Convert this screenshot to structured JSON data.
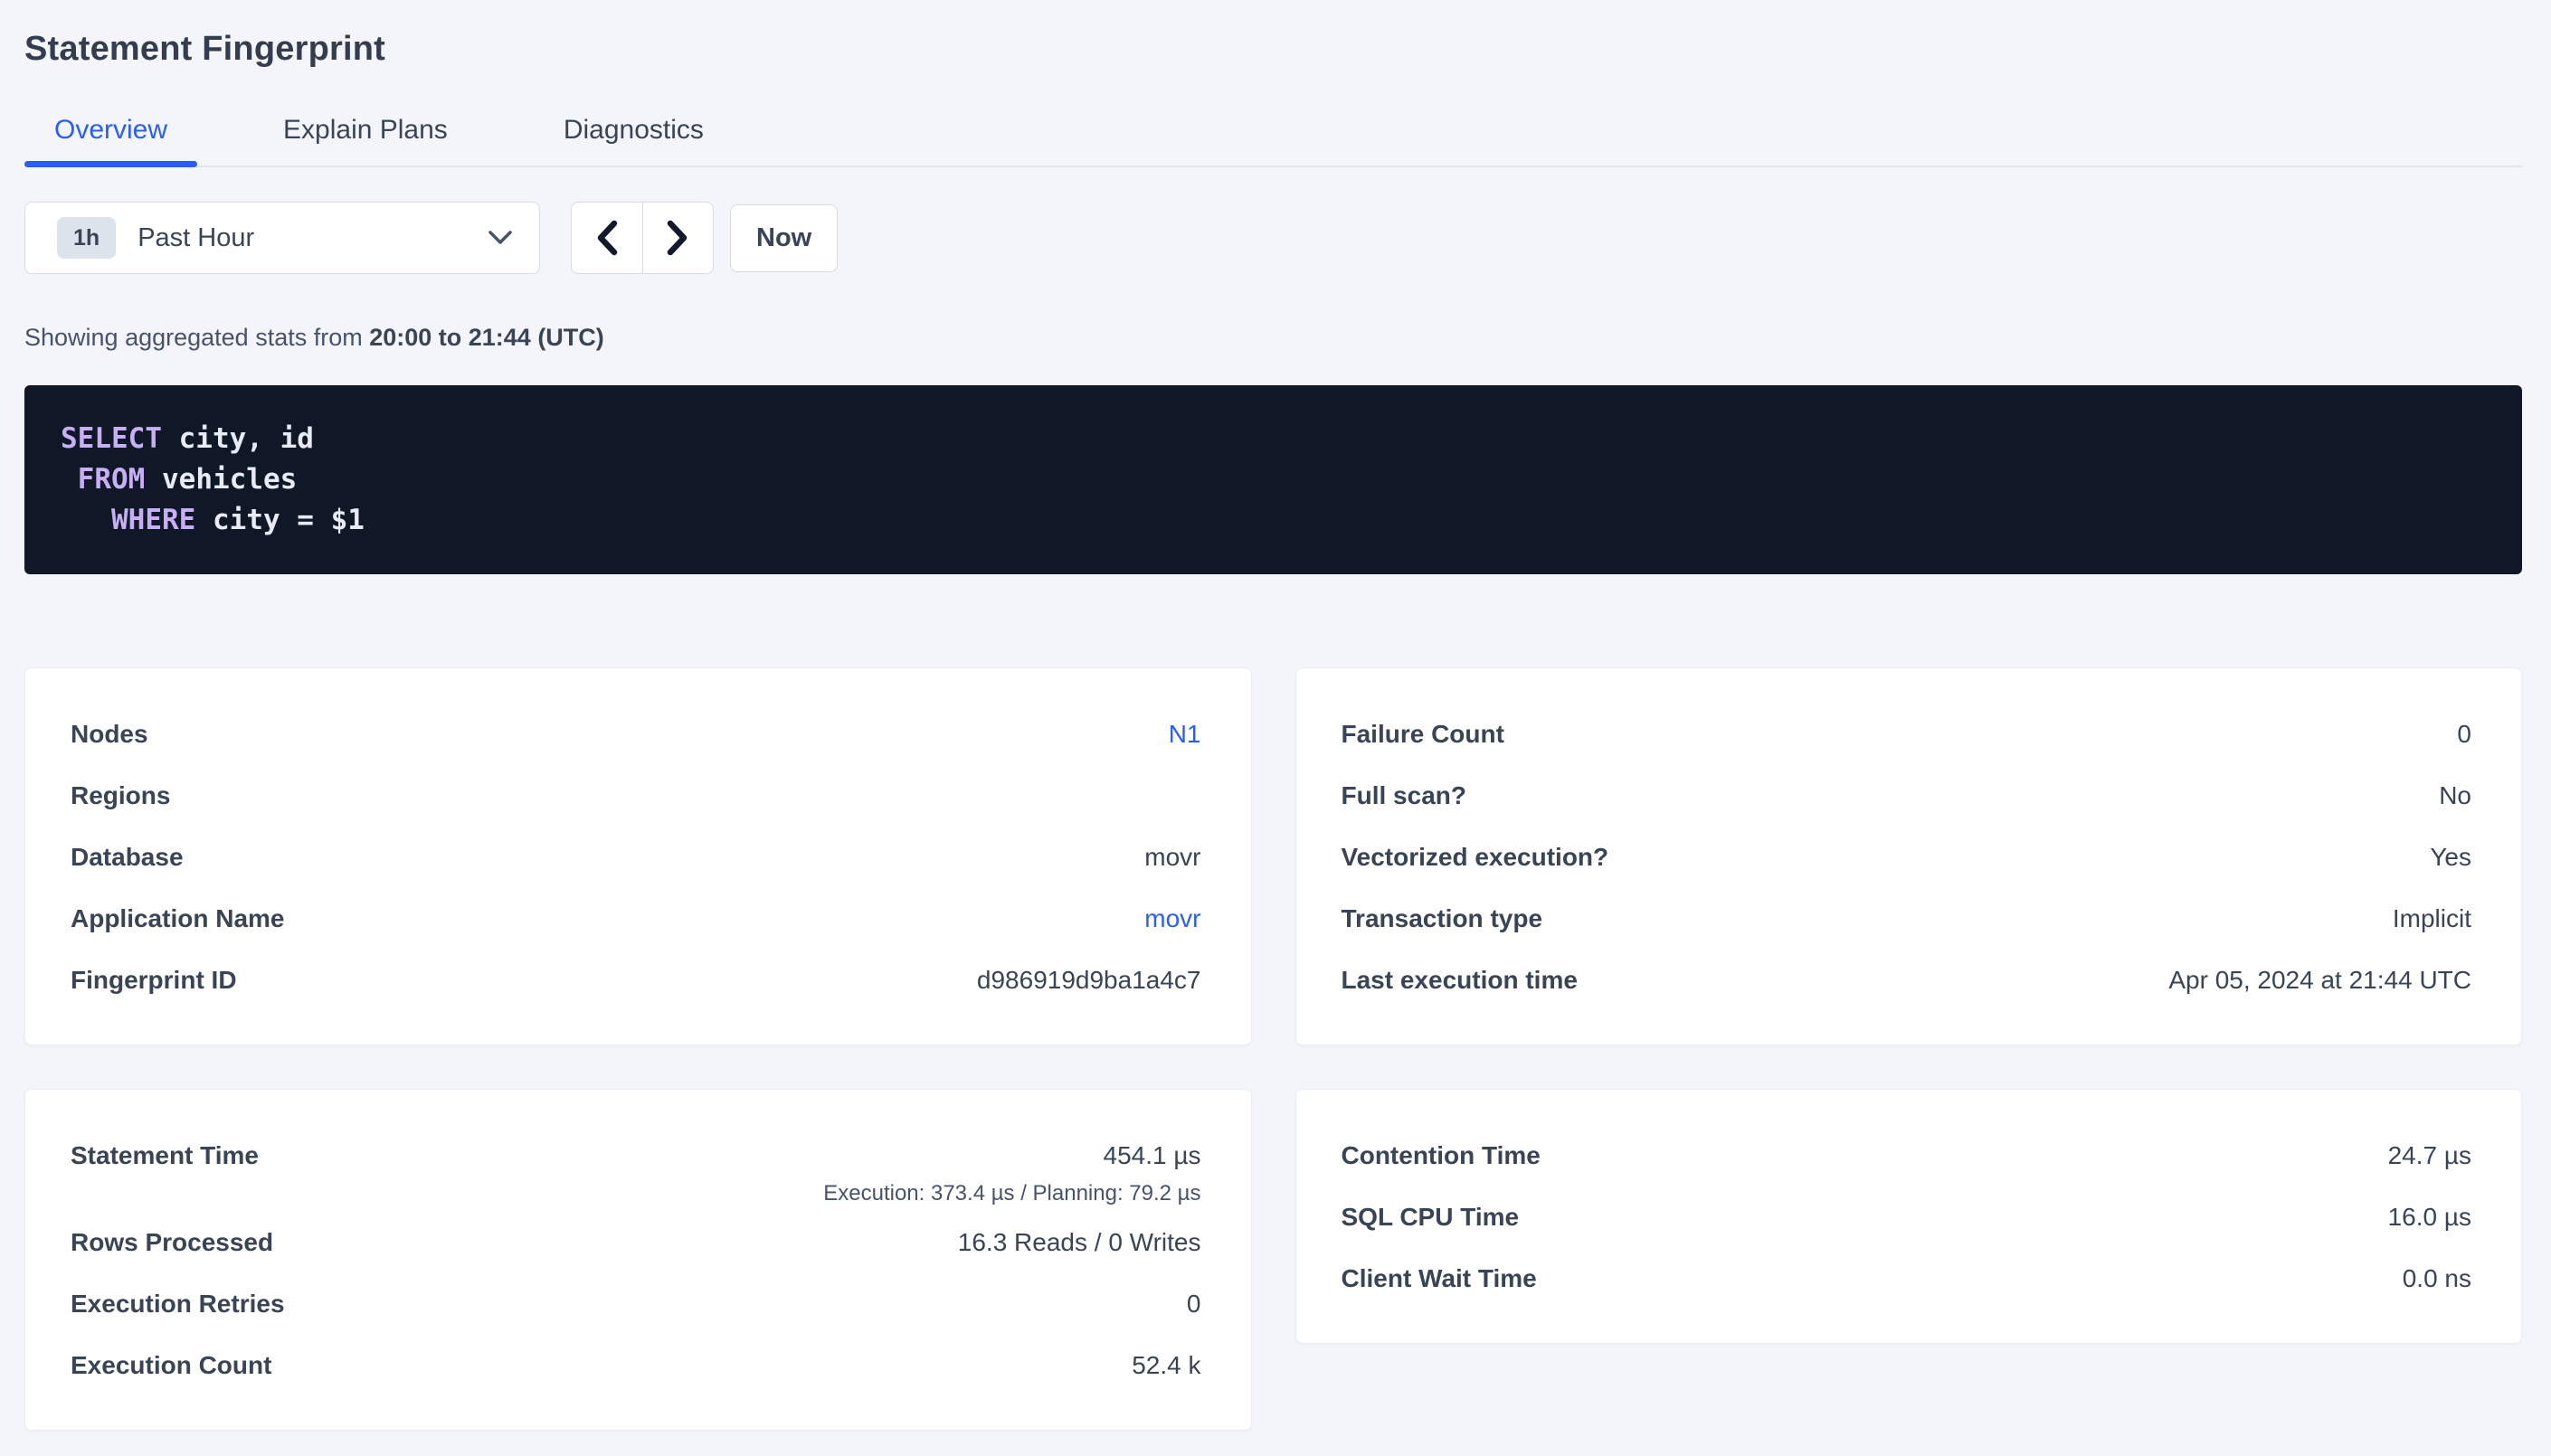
{
  "page": {
    "title": "Statement Fingerprint"
  },
  "tabs": [
    {
      "label": "Overview",
      "active": true
    },
    {
      "label": "Explain Plans",
      "active": false
    },
    {
      "label": "Diagnostics",
      "active": false
    }
  ],
  "time_picker": {
    "badge": "1h",
    "selected_range": "Past Hour",
    "prev_icon": "chevron-left-icon",
    "next_icon": "chevron-right-icon",
    "now_label": "Now"
  },
  "stats_line": {
    "prefix": "Showing aggregated stats from ",
    "range": "20:00 to 21:44 (UTC)"
  },
  "sql": {
    "lines": [
      [
        {
          "text": "SELECT",
          "kw": true
        },
        {
          "text": " city, id"
        }
      ],
      [
        {
          "text": " "
        },
        {
          "text": "FROM",
          "kw": true
        },
        {
          "text": " vehicles"
        }
      ],
      [
        {
          "text": "   "
        },
        {
          "text": "WHERE",
          "kw": true
        },
        {
          "text": " city = $1"
        }
      ]
    ]
  },
  "cards": {
    "details_left": {
      "rows": [
        {
          "label": "Nodes",
          "value": "N1",
          "link": true
        },
        {
          "label": "Regions",
          "value": ""
        },
        {
          "label": "Database",
          "value": "movr"
        },
        {
          "label": "Application Name",
          "value": "movr",
          "link": true
        },
        {
          "label": "Fingerprint ID",
          "value": "d986919d9ba1a4c7"
        }
      ]
    },
    "details_right": {
      "rows": [
        {
          "label": "Failure Count",
          "value": "0"
        },
        {
          "label": "Full scan?",
          "value": "No"
        },
        {
          "label": "Vectorized execution?",
          "value": "Yes"
        },
        {
          "label": "Transaction type",
          "value": "Implicit"
        },
        {
          "label": "Last execution time",
          "value": "Apr 05, 2024 at 21:44 UTC"
        }
      ]
    },
    "perf_left": {
      "rows": [
        {
          "label": "Statement Time",
          "value": "454.1 µs",
          "sub": "Execution: 373.4 µs / Planning: 79.2 µs"
        },
        {
          "label": "Rows Processed",
          "value": "16.3 Reads / 0 Writes"
        },
        {
          "label": "Execution Retries",
          "value": "0"
        },
        {
          "label": "Execution Count",
          "value": "52.4 k"
        }
      ]
    },
    "perf_right": {
      "rows": [
        {
          "label": "Contention Time",
          "value": "24.7 µs"
        },
        {
          "label": "SQL CPU Time",
          "value": "16.0 µs"
        },
        {
          "label": "Client Wait Time",
          "value": "0.0 ns"
        }
      ]
    }
  },
  "colors": {
    "accent_blue": "#2b5df5",
    "page_background": "#f4f5fa",
    "text_slate": "#394455",
    "sql_background": "#101726",
    "sql_keyword": "#c8aef5",
    "sql_text": "#e8eaf6",
    "badge_background": "#dde3ec",
    "border": "#d5dbe8"
  }
}
